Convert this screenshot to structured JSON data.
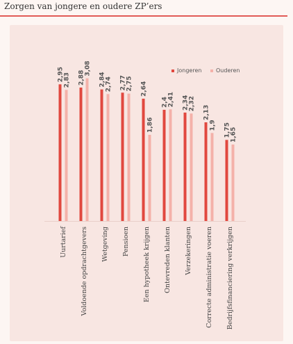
{
  "title": "Zorgen van jongere en oudere ZP’ers",
  "colors": {
    "jongeren": "#e1483f",
    "ouderen": "#f4b1a9",
    "accent": "#e15a56"
  },
  "chart_data": {
    "type": "bar",
    "title": "Zorgen van jongere en oudere ZP’ers",
    "categories": [
      "Uurtarief",
      "Voldoende opdrachtgevers",
      "Wetgeving",
      "Pensioen",
      "Een hypotheek krijgen",
      "Ontevreden klanten",
      "Verzekeringen",
      "Correcte administratie voeren",
      "Bedrijfsfinanciering verkrijgen"
    ],
    "series": [
      {
        "name": "Jongeren",
        "values": [
          2.95,
          2.88,
          2.84,
          2.77,
          2.64,
          2.4,
          2.34,
          2.13,
          1.75
        ]
      },
      {
        "name": "Ouderen",
        "values": [
          2.83,
          3.08,
          2.74,
          2.75,
          1.86,
          2.41,
          2.32,
          1.9,
          1.65
        ]
      }
    ],
    "labels": {
      "Jongeren": [
        "2,95",
        "2,88",
        "2,84",
        "2,77",
        "2,64",
        "2,4",
        "2,34",
        "2,13",
        "1,75"
      ],
      "Ouderen": [
        "2,83",
        "3,08",
        "2,74",
        "2,75",
        "1,86",
        "2,41",
        "2,32",
        "1,9",
        "1,65"
      ]
    },
    "ylim": [
      0,
      3.3
    ],
    "grid": false,
    "legend": "top-right"
  }
}
